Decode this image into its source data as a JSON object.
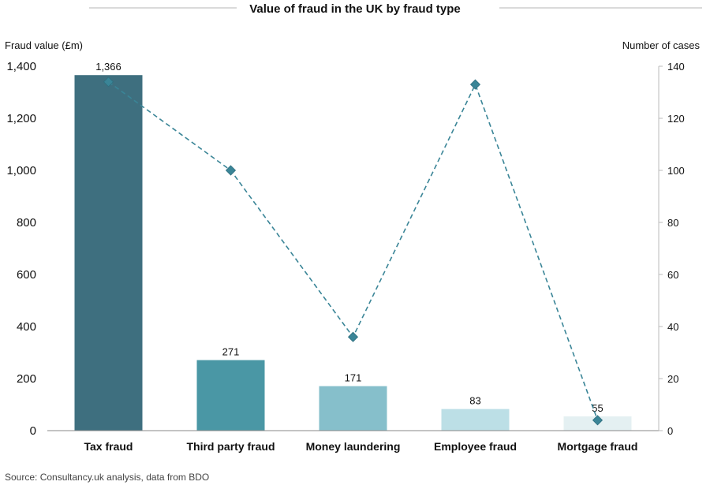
{
  "chart_data": {
    "type": "bar",
    "title": "Value of fraud in the UK by fraud type",
    "categories": [
      "Tax fraud",
      "Third party fraud",
      "Money laundering",
      "Employee fraud",
      "Mortgage fraud"
    ],
    "series": [
      {
        "name": "",
        "type": "bar",
        "axis": "left",
        "values": [
          1366,
          271,
          171,
          83,
          55
        ],
        "colors": [
          "#3e6f7f",
          "#4a97a5",
          "#86bfcb",
          "#bcdfe6",
          "#e4f0f2"
        ]
      },
      {
        "name": "",
        "type": "line",
        "axis": "right",
        "values": [
          134,
          100,
          36,
          133,
          4
        ],
        "color": "#3a8597",
        "style": "dashed",
        "marker": "diamond"
      }
    ],
    "ylabel": "Fraud value (£m)",
    "ylim": [
      0,
      1400
    ],
    "yticks": [
      "0",
      "200",
      "400",
      "600",
      "800",
      "1,000",
      "1,200",
      "1,400"
    ],
    "y2label": "Number of cases",
    "y2lim": [
      0,
      140
    ],
    "y2ticks": [
      "0",
      "20",
      "40",
      "60",
      "80",
      "100",
      "120",
      "140"
    ],
    "data_labels": [
      "1,366",
      "271",
      "171",
      "83",
      "55"
    ],
    "grid": false,
    "legend": "none"
  },
  "source": "Source: Consultancy.uk analysis, data from BDO"
}
